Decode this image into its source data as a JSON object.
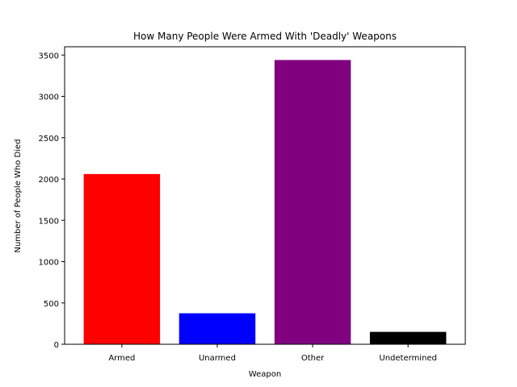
{
  "chart_data": {
    "type": "bar",
    "title": "How Many People Were Armed With 'Deadly' Weapons",
    "xlabel": "Weapon",
    "ylabel": "Number of People Who Died",
    "categories": [
      "Armed",
      "Unarmed",
      "Other",
      "Undetermined"
    ],
    "values": [
      2060,
      375,
      3440,
      150
    ],
    "colors": [
      "#ff0000",
      "#0000ff",
      "#800080",
      "#000000"
    ],
    "ylim": [
      0,
      3600
    ],
    "yticks": [
      0,
      500,
      1000,
      1500,
      2000,
      2500,
      3000,
      3500
    ],
    "grid": false,
    "legend": "none"
  }
}
